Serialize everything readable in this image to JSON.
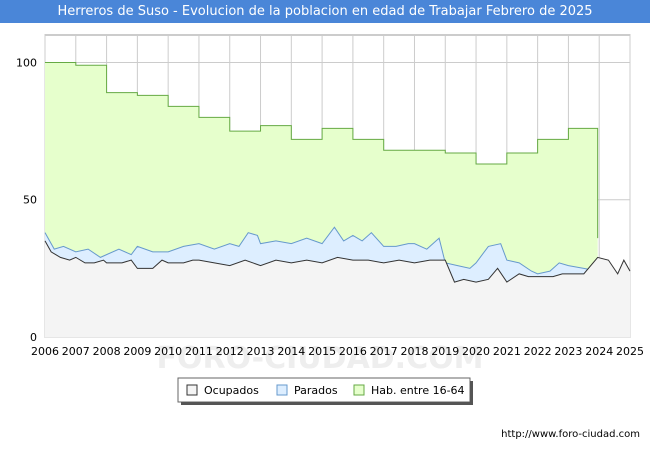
{
  "title": "Herreros de Suso - Evolucion de la poblacion en edad de Trabajar Febrero de 2025",
  "source_url": "http://www.foro-ciudad.com",
  "watermark": "FORO-CIUDAD.COM",
  "colors": {
    "title_bg": "#4a86d8",
    "hab_fill": "#e6ffcc",
    "hab_line": "#66aa44",
    "parados_fill": "#ddeeff",
    "parados_line": "#6699cc",
    "ocupados_fill": "#f4f4f4",
    "ocupados_line": "#333333",
    "grid": "#cccccc"
  },
  "chart_data": {
    "type": "area",
    "title": "Herreros de Suso - Evolucion de la poblacion en edad de Trabajar Febrero de 2025",
    "xlim": [
      2006,
      2025
    ],
    "ylim": [
      0,
      110
    ],
    "y_ticks": [
      0,
      50,
      100
    ],
    "x_ticks": [
      "2006",
      "2007",
      "2008",
      "2009",
      "2010",
      "2011",
      "2012",
      "2013",
      "2014",
      "2015",
      "2016",
      "2017",
      "2018",
      "2019",
      "2020",
      "2021",
      "2022",
      "2023",
      "2024",
      "2025"
    ],
    "grid": true,
    "legend_position": "bottom",
    "legend": [
      "Ocupados",
      "Parados",
      "Hab. entre 16-64"
    ],
    "series": [
      {
        "name": "Hab. entre 16-64",
        "step_values": [
          [
            2006,
            100
          ],
          [
            2007,
            99
          ],
          [
            2008,
            89
          ],
          [
            2009,
            88
          ],
          [
            2010,
            84
          ],
          [
            2011,
            80
          ],
          [
            2012,
            75
          ],
          [
            2013,
            77
          ],
          [
            2014,
            72
          ],
          [
            2015,
            76
          ],
          [
            2016,
            72
          ],
          [
            2017,
            68
          ],
          [
            2018,
            68
          ],
          [
            2019,
            67
          ],
          [
            2020,
            63
          ],
          [
            2021,
            67
          ],
          [
            2022,
            72
          ],
          [
            2023,
            76
          ],
          [
            2023.95,
            36
          ]
        ]
      },
      {
        "name": "Parados",
        "values": [
          [
            2006.0,
            38
          ],
          [
            2006.3,
            32
          ],
          [
            2006.6,
            33
          ],
          [
            2007.0,
            31
          ],
          [
            2007.4,
            32
          ],
          [
            2007.8,
            29
          ],
          [
            2008.0,
            30
          ],
          [
            2008.4,
            32
          ],
          [
            2008.8,
            30
          ],
          [
            2009.0,
            33
          ],
          [
            2009.5,
            31
          ],
          [
            2010.0,
            31
          ],
          [
            2010.5,
            33
          ],
          [
            2011.0,
            34
          ],
          [
            2011.5,
            32
          ],
          [
            2012.0,
            34
          ],
          [
            2012.3,
            33
          ],
          [
            2012.6,
            38
          ],
          [
            2012.9,
            37
          ],
          [
            2013.0,
            34
          ],
          [
            2013.5,
            35
          ],
          [
            2014.0,
            34
          ],
          [
            2014.5,
            36
          ],
          [
            2015.0,
            34
          ],
          [
            2015.4,
            40
          ],
          [
            2015.7,
            35
          ],
          [
            2016.0,
            37
          ],
          [
            2016.3,
            35
          ],
          [
            2016.6,
            38
          ],
          [
            2017.0,
            33
          ],
          [
            2017.4,
            33
          ],
          [
            2017.8,
            34
          ],
          [
            2018.0,
            34
          ],
          [
            2018.4,
            32
          ],
          [
            2018.8,
            36
          ],
          [
            2019.0,
            27
          ],
          [
            2019.4,
            26
          ],
          [
            2019.8,
            25
          ],
          [
            2020.0,
            27
          ],
          [
            2020.4,
            33
          ],
          [
            2020.8,
            34
          ],
          [
            2021.0,
            28
          ],
          [
            2021.4,
            27
          ],
          [
            2021.8,
            24
          ],
          [
            2022.0,
            23
          ],
          [
            2022.4,
            24
          ],
          [
            2022.7,
            27
          ],
          [
            2023.0,
            26
          ],
          [
            2023.5,
            25
          ],
          [
            2023.95,
            24
          ]
        ]
      },
      {
        "name": "Ocupados",
        "values": [
          [
            2006.0,
            35
          ],
          [
            2006.2,
            31
          ],
          [
            2006.5,
            29
          ],
          [
            2006.8,
            28
          ],
          [
            2007.0,
            29
          ],
          [
            2007.3,
            27
          ],
          [
            2007.6,
            27
          ],
          [
            2007.9,
            28
          ],
          [
            2008.0,
            27
          ],
          [
            2008.5,
            27
          ],
          [
            2008.8,
            28
          ],
          [
            2009.0,
            25
          ],
          [
            2009.5,
            25
          ],
          [
            2009.8,
            28
          ],
          [
            2010.0,
            27
          ],
          [
            2010.5,
            27
          ],
          [
            2010.8,
            28
          ],
          [
            2011.0,
            28
          ],
          [
            2011.5,
            27
          ],
          [
            2012.0,
            26
          ],
          [
            2012.5,
            28
          ],
          [
            2013.0,
            26
          ],
          [
            2013.5,
            28
          ],
          [
            2014.0,
            27
          ],
          [
            2014.5,
            28
          ],
          [
            2015.0,
            27
          ],
          [
            2015.5,
            29
          ],
          [
            2016.0,
            28
          ],
          [
            2016.5,
            28
          ],
          [
            2017.0,
            27
          ],
          [
            2017.5,
            28
          ],
          [
            2018.0,
            27
          ],
          [
            2018.5,
            28
          ],
          [
            2019.0,
            28
          ],
          [
            2019.3,
            20
          ],
          [
            2019.6,
            21
          ],
          [
            2020.0,
            20
          ],
          [
            2020.4,
            21
          ],
          [
            2020.7,
            25
          ],
          [
            2021.0,
            20
          ],
          [
            2021.4,
            23
          ],
          [
            2021.7,
            22
          ],
          [
            2022.0,
            22
          ],
          [
            2022.5,
            22
          ],
          [
            2022.8,
            23
          ],
          [
            2023.0,
            23
          ],
          [
            2023.5,
            23
          ],
          [
            2023.95,
            29
          ],
          [
            2024.3,
            28
          ],
          [
            2024.6,
            23
          ],
          [
            2024.8,
            28
          ],
          [
            2025.0,
            24
          ]
        ]
      }
    ]
  }
}
